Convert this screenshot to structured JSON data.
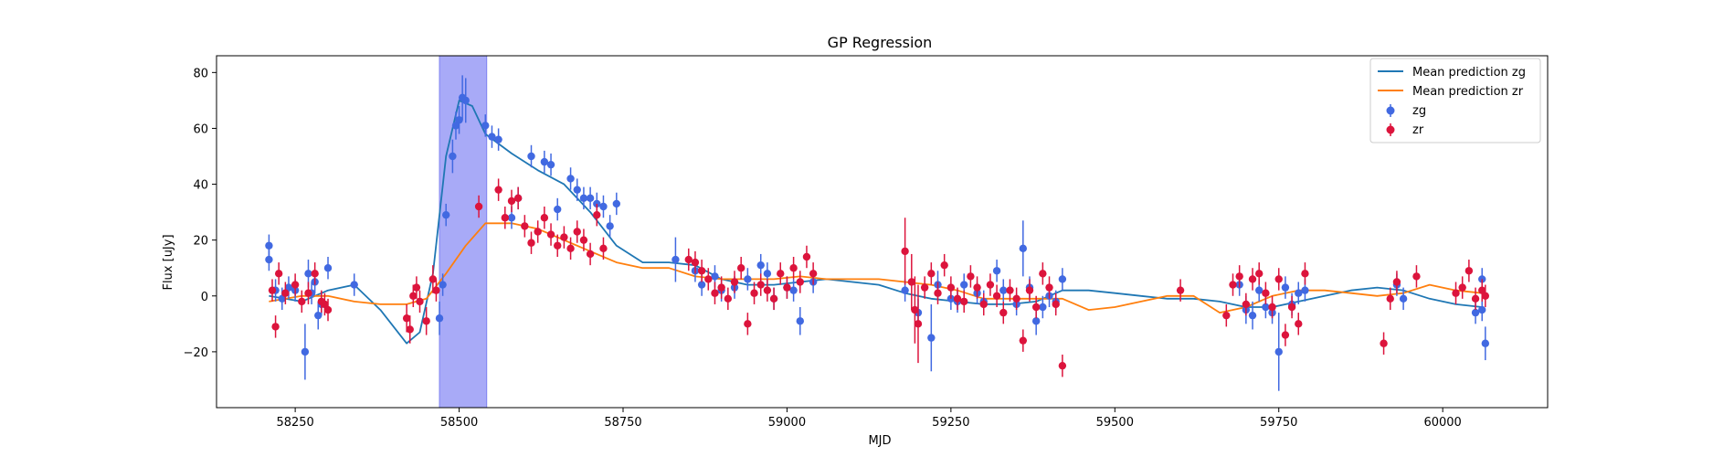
{
  "chart_data": {
    "type": "scatter",
    "title": "GP Regression",
    "xlabel": "MJD",
    "ylabel": "Flux [uJy]",
    "xlim": [
      58130,
      60160
    ],
    "ylim": [
      -40,
      86
    ],
    "xticks": [
      {
        "value": 58250,
        "label": "58250"
      },
      {
        "value": 58500,
        "label": "58500"
      },
      {
        "value": 58750,
        "label": "58750"
      },
      {
        "value": 59000,
        "label": "59000"
      },
      {
        "value": 59250,
        "label": "59250"
      },
      {
        "value": 59500,
        "label": "59500"
      },
      {
        "value": 59750,
        "label": "59750"
      },
      {
        "value": 60000,
        "label": "60000"
      }
    ],
    "yticks": [
      {
        "value": -20,
        "label": "−20"
      },
      {
        "value": 0,
        "label": "0"
      },
      {
        "value": 20,
        "label": "20"
      },
      {
        "value": 40,
        "label": "40"
      },
      {
        "value": 60,
        "label": "60"
      },
      {
        "value": 80,
        "label": "80"
      }
    ],
    "grid": false,
    "legend_position": "top-right",
    "shaded_region": {
      "x_start": 58470,
      "x_end": 58542,
      "color": "#a8aaf7"
    },
    "lines": [
      {
        "name": "Mean prediction zg",
        "color": "#1f77b4",
        "x": [
          58210,
          58260,
          58300,
          58340,
          58380,
          58420,
          58440,
          58460,
          58480,
          58500,
          58520,
          58540,
          58580,
          58620,
          58660,
          58700,
          58740,
          58780,
          58820,
          58860,
          58900,
          58940,
          58980,
          59020,
          59060,
          59100,
          59140,
          59180,
          59220,
          59260,
          59300,
          59340,
          59380,
          59420,
          59460,
          59500,
          59540,
          59580,
          59620,
          59660,
          59700,
          59740,
          59780,
          59820,
          59860,
          59900,
          59940,
          59980,
          60020,
          60060
        ],
        "y": [
          0,
          -2,
          2,
          4,
          -5,
          -17,
          -13,
          8,
          50,
          70,
          68,
          58,
          51,
          45,
          40,
          30,
          18,
          12,
          12,
          11,
          6,
          4,
          4,
          5,
          6,
          5,
          4,
          1,
          -1,
          -2,
          -3,
          -3,
          -2,
          2,
          2,
          1,
          0,
          -1,
          -1,
          -2,
          -4,
          -4,
          -2,
          0,
          2,
          3,
          2,
          -1,
          -3,
          -4
        ]
      },
      {
        "name": "Mean prediction zr",
        "color": "#ff7f0e",
        "x": [
          58210,
          58260,
          58300,
          58340,
          58380,
          58420,
          58450,
          58480,
          58510,
          58540,
          58580,
          58620,
          58660,
          58700,
          58740,
          58780,
          58820,
          58860,
          58900,
          58940,
          58980,
          59020,
          59060,
          59100,
          59140,
          59180,
          59220,
          59260,
          59300,
          59340,
          59380,
          59420,
          59460,
          59500,
          59540,
          59580,
          59620,
          59660,
          59700,
          59740,
          59780,
          59820,
          59860,
          59900,
          59940,
          59980,
          60020,
          60060
        ],
        "y": [
          -2,
          0,
          0,
          -2,
          -3,
          -3,
          -1,
          8,
          18,
          26,
          26,
          24,
          20,
          16,
          12,
          10,
          10,
          7,
          6,
          6,
          6,
          7,
          6,
          6,
          6,
          5,
          4,
          2,
          -1,
          -1,
          -1,
          -1,
          -5,
          -4,
          -2,
          0,
          0,
          -6,
          -4,
          0,
          2,
          2,
          1,
          0,
          1,
          4,
          2,
          1
        ]
      }
    ],
    "series": [
      {
        "name": "zg",
        "color": "#4169e1",
        "points": [
          [
            58210,
            18,
            4
          ],
          [
            58210,
            13,
            4
          ],
          [
            58220,
            2,
            4
          ],
          [
            58230,
            -1,
            4
          ],
          [
            58240,
            3,
            4
          ],
          [
            58250,
            2,
            4
          ],
          [
            58265,
            -20,
            10
          ],
          [
            58270,
            8,
            5
          ],
          [
            58275,
            1,
            4
          ],
          [
            58280,
            5,
            4
          ],
          [
            58285,
            -7,
            5
          ],
          [
            58290,
            -3,
            4
          ],
          [
            58300,
            10,
            4
          ],
          [
            58340,
            4,
            4
          ],
          [
            58470,
            -8,
            6
          ],
          [
            58475,
            4,
            4
          ],
          [
            58480,
            29,
            4
          ],
          [
            58490,
            50,
            6
          ],
          [
            58495,
            61,
            5
          ],
          [
            58500,
            63,
            5
          ],
          [
            58505,
            71,
            8
          ],
          [
            58510,
            70,
            8
          ],
          [
            58540,
            61,
            4
          ],
          [
            58550,
            57,
            4
          ],
          [
            58560,
            56,
            4
          ],
          [
            58580,
            28,
            4
          ],
          [
            58590,
            35,
            4
          ],
          [
            58610,
            50,
            4
          ],
          [
            58630,
            48,
            4
          ],
          [
            58640,
            47,
            4
          ],
          [
            58650,
            31,
            4
          ],
          [
            58670,
            42,
            4
          ],
          [
            58680,
            38,
            4
          ],
          [
            58690,
            35,
            4
          ],
          [
            58700,
            35,
            4
          ],
          [
            58710,
            33,
            4
          ],
          [
            58720,
            32,
            4
          ],
          [
            58730,
            25,
            4
          ],
          [
            58740,
            33,
            4
          ],
          [
            58830,
            13,
            8
          ],
          [
            58860,
            9,
            4
          ],
          [
            58870,
            4,
            4
          ],
          [
            58890,
            7,
            4
          ],
          [
            58900,
            2,
            4
          ],
          [
            58920,
            3,
            4
          ],
          [
            58940,
            6,
            4
          ],
          [
            58960,
            11,
            4
          ],
          [
            58970,
            8,
            4
          ],
          [
            58980,
            -1,
            4
          ],
          [
            59000,
            3,
            4
          ],
          [
            59010,
            2,
            4
          ],
          [
            59020,
            -9,
            5
          ],
          [
            59040,
            5,
            4
          ],
          [
            59180,
            2,
            4
          ],
          [
            59200,
            -6,
            5
          ],
          [
            59220,
            -15,
            12
          ],
          [
            59230,
            4,
            5
          ],
          [
            59250,
            -1,
            4
          ],
          [
            59260,
            -2,
            4
          ],
          [
            59270,
            4,
            4
          ],
          [
            59290,
            1,
            4
          ],
          [
            59300,
            -2,
            4
          ],
          [
            59320,
            9,
            4
          ],
          [
            59330,
            2,
            4
          ],
          [
            59350,
            -3,
            4
          ],
          [
            59360,
            17,
            10
          ],
          [
            59370,
            3,
            4
          ],
          [
            59380,
            -9,
            5
          ],
          [
            59390,
            -4,
            4
          ],
          [
            59400,
            0,
            4
          ],
          [
            59410,
            -2,
            4
          ],
          [
            59420,
            6,
            4
          ],
          [
            59690,
            4,
            4
          ],
          [
            59700,
            -5,
            5
          ],
          [
            59710,
            -7,
            5
          ],
          [
            59720,
            2,
            4
          ],
          [
            59730,
            -4,
            4
          ],
          [
            59740,
            -6,
            4
          ],
          [
            59750,
            -20,
            14
          ],
          [
            59760,
            3,
            4
          ],
          [
            59770,
            -3,
            4
          ],
          [
            59780,
            1,
            4
          ],
          [
            59790,
            2,
            4
          ],
          [
            59930,
            4,
            4
          ],
          [
            59940,
            -1,
            4
          ],
          [
            60050,
            -6,
            4
          ],
          [
            60060,
            6,
            4
          ],
          [
            60065,
            -17,
            6
          ],
          [
            60060,
            -5,
            4
          ]
        ]
      },
      {
        "name": "zr",
        "color": "#dc143c",
        "points": [
          [
            58215,
            2,
            4
          ],
          [
            58220,
            -11,
            4
          ],
          [
            58225,
            8,
            4
          ],
          [
            58235,
            1,
            4
          ],
          [
            58250,
            4,
            4
          ],
          [
            58260,
            -2,
            4
          ],
          [
            58270,
            1,
            4
          ],
          [
            58280,
            8,
            4
          ],
          [
            58290,
            -2,
            4
          ],
          [
            58295,
            -3,
            4
          ],
          [
            58300,
            -5,
            4
          ],
          [
            58420,
            -8,
            5
          ],
          [
            58425,
            -12,
            5
          ],
          [
            58430,
            0,
            4
          ],
          [
            58435,
            3,
            4
          ],
          [
            58440,
            -2,
            4
          ],
          [
            58450,
            -9,
            5
          ],
          [
            58460,
            6,
            5
          ],
          [
            58465,
            2,
            4
          ],
          [
            58530,
            32,
            4
          ],
          [
            58560,
            38,
            4
          ],
          [
            58570,
            28,
            4
          ],
          [
            58580,
            34,
            4
          ],
          [
            58590,
            35,
            4
          ],
          [
            58600,
            25,
            4
          ],
          [
            58610,
            19,
            4
          ],
          [
            58620,
            23,
            4
          ],
          [
            58630,
            28,
            4
          ],
          [
            58640,
            22,
            4
          ],
          [
            58650,
            18,
            4
          ],
          [
            58660,
            21,
            4
          ],
          [
            58670,
            17,
            4
          ],
          [
            58680,
            23,
            4
          ],
          [
            58690,
            20,
            4
          ],
          [
            58700,
            15,
            4
          ],
          [
            58710,
            29,
            4
          ],
          [
            58720,
            17,
            4
          ],
          [
            58850,
            13,
            4
          ],
          [
            58860,
            12,
            4
          ],
          [
            58870,
            9,
            4
          ],
          [
            58880,
            6,
            4
          ],
          [
            58890,
            1,
            4
          ],
          [
            58900,
            3,
            4
          ],
          [
            58910,
            -1,
            4
          ],
          [
            58920,
            5,
            4
          ],
          [
            58930,
            10,
            4
          ],
          [
            58940,
            -10,
            4
          ],
          [
            58950,
            1,
            4
          ],
          [
            58960,
            4,
            4
          ],
          [
            58970,
            2,
            4
          ],
          [
            58980,
            -1,
            4
          ],
          [
            58990,
            8,
            4
          ],
          [
            59000,
            3,
            4
          ],
          [
            59010,
            10,
            4
          ],
          [
            59020,
            5,
            4
          ],
          [
            59030,
            14,
            4
          ],
          [
            59040,
            8,
            4
          ],
          [
            59180,
            16,
            12
          ],
          [
            59190,
            5,
            10
          ],
          [
            59195,
            -5,
            12
          ],
          [
            59200,
            -10,
            14
          ],
          [
            59210,
            3,
            4
          ],
          [
            59220,
            8,
            4
          ],
          [
            59230,
            1,
            4
          ],
          [
            59240,
            11,
            4
          ],
          [
            59250,
            3,
            4
          ],
          [
            59260,
            -1,
            4
          ],
          [
            59270,
            -2,
            4
          ],
          [
            59280,
            7,
            4
          ],
          [
            59290,
            3,
            4
          ],
          [
            59300,
            -3,
            4
          ],
          [
            59310,
            4,
            4
          ],
          [
            59320,
            0,
            4
          ],
          [
            59330,
            -6,
            4
          ],
          [
            59340,
            2,
            4
          ],
          [
            59350,
            -1,
            4
          ],
          [
            59360,
            -16,
            4
          ],
          [
            59370,
            2,
            4
          ],
          [
            59380,
            -4,
            4
          ],
          [
            59390,
            8,
            4
          ],
          [
            59400,
            3,
            4
          ],
          [
            59410,
            -3,
            4
          ],
          [
            59420,
            -25,
            4
          ],
          [
            59600,
            2,
            4
          ],
          [
            59670,
            -7,
            4
          ],
          [
            59680,
            4,
            4
          ],
          [
            59690,
            7,
            4
          ],
          [
            59700,
            -3,
            4
          ],
          [
            59710,
            6,
            4
          ],
          [
            59720,
            8,
            4
          ],
          [
            59730,
            1,
            4
          ],
          [
            59740,
            -4,
            4
          ],
          [
            59750,
            6,
            4
          ],
          [
            59760,
            -14,
            4
          ],
          [
            59770,
            -4,
            4
          ],
          [
            59780,
            -10,
            4
          ],
          [
            59790,
            8,
            4
          ],
          [
            59910,
            -17,
            4
          ],
          [
            59920,
            -1,
            4
          ],
          [
            59930,
            5,
            4
          ],
          [
            59960,
            7,
            4
          ],
          [
            60020,
            1,
            4
          ],
          [
            60030,
            3,
            4
          ],
          [
            60040,
            9,
            4
          ],
          [
            60050,
            -1,
            4
          ],
          [
            60060,
            2,
            4
          ],
          [
            60065,
            0,
            4
          ]
        ]
      }
    ]
  }
}
